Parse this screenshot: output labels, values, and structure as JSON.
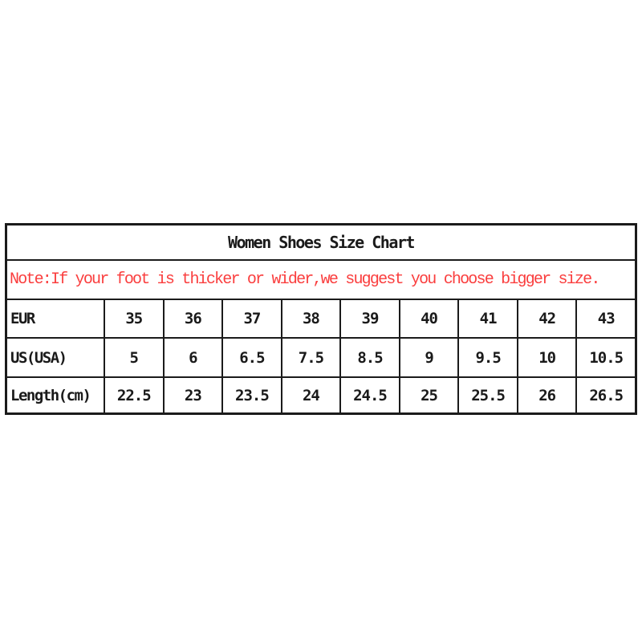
{
  "page": {
    "background_color": "#ffffff",
    "border_color": "#1b1b1b",
    "text_color": "#1a1a1a",
    "note_color": "#fa3e3e"
  },
  "table": {
    "title": "Women Shoes Size Chart",
    "note": "Note:If your foot is thicker or wider,we suggest you choose bigger size.",
    "rows": [
      {
        "label": "EUR",
        "values": [
          "35",
          "36",
          "37",
          "38",
          "39",
          "40",
          "41",
          "42",
          "43"
        ]
      },
      {
        "label": "US(USA)",
        "values": [
          "5",
          "6",
          "6.5",
          "7.5",
          "8.5",
          "9",
          "9.5",
          "10",
          "10.5"
        ]
      },
      {
        "label": "Length(cm)",
        "values": [
          "22.5",
          "23",
          "23.5",
          "24",
          "24.5",
          "25",
          "25.5",
          "26",
          "26.5"
        ]
      }
    ]
  },
  "chart_data": {
    "type": "table",
    "title": "Women Shoes Size Chart",
    "note": "Note:If your foot is thicker or wider,we suggest you choose bigger size.",
    "row_headers": [
      "EUR",
      "US(USA)",
      "Length(cm)"
    ],
    "rows": [
      {
        "name": "EUR",
        "values": [
          35,
          36,
          37,
          38,
          39,
          40,
          41,
          42,
          43
        ]
      },
      {
        "name": "US(USA)",
        "values": [
          5,
          6,
          6.5,
          7.5,
          8.5,
          9,
          9.5,
          10,
          10.5
        ]
      },
      {
        "name": "Length(cm)",
        "values": [
          22.5,
          23,
          23.5,
          24,
          24.5,
          25,
          25.5,
          26,
          26.5
        ]
      }
    ]
  }
}
